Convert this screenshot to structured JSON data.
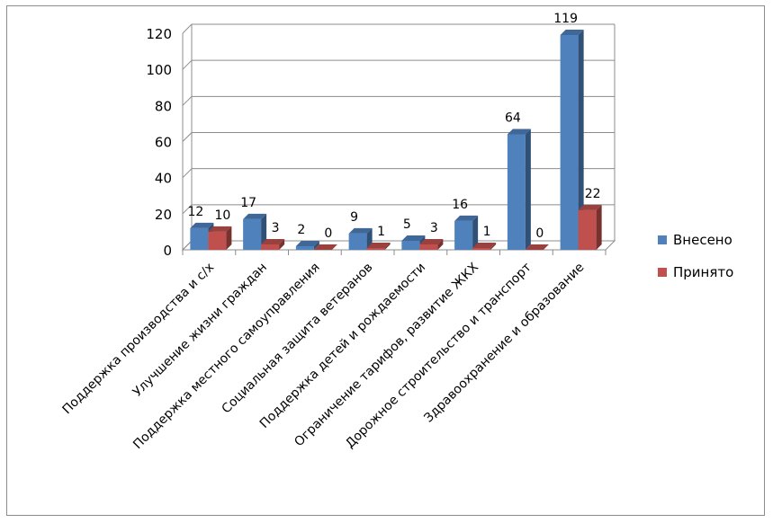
{
  "chart_data": {
    "type": "bar",
    "categories": [
      "Поддержка производства и с/х",
      "Улучшение жизни граждан",
      "Поддержка местного самоуправления",
      "Социальная защита ветеранов",
      "Поддержка детей и рождаемости",
      "Ограничение тарифов, развитие ЖКХ",
      "Дорожное строительство и транспорт",
      "Здравоохранение и образование"
    ],
    "series": [
      {
        "name": "Внесено",
        "values": [
          12,
          17,
          2,
          9,
          5,
          16,
          64,
          119
        ],
        "color": "#4f81bd"
      },
      {
        "name": "Принято",
        "values": [
          10,
          3,
          0,
          1,
          3,
          1,
          0,
          22
        ],
        "color": "#c0504d"
      }
    ],
    "ylim": [
      0,
      120
    ],
    "yticks": [
      0,
      20,
      40,
      60,
      80,
      100,
      120
    ],
    "grid": true,
    "legend_position": "right",
    "style": "3d-clustered"
  }
}
